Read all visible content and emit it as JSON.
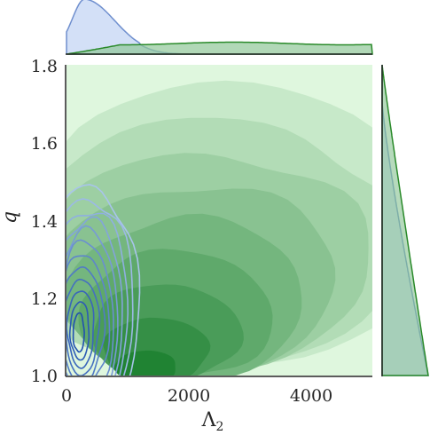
{
  "chart_data": {
    "type": "jointplot-kde-contour",
    "xlabel": "Λ",
    "xlabel_subscript": "2",
    "ylabel": "q",
    "xlim": [
      0,
      5000
    ],
    "ylim": [
      1.0,
      1.8
    ],
    "x_ticks": [
      0,
      2000,
      4000
    ],
    "x_tick_labels": [
      "0",
      "2000",
      "4000"
    ],
    "y_ticks": [
      1.0,
      1.2,
      1.4,
      1.6,
      1.8
    ],
    "y_tick_labels": [
      "1.0",
      "1.2",
      "1.4",
      "1.6",
      "1.8"
    ],
    "grid": false,
    "legend": "none",
    "colors": {
      "green_background": "#dff7de",
      "green_dark": "#1a7f2e",
      "green_line": "#2a8a2a",
      "blue_dark": "#2050b0",
      "blue_light": "#a8c4ec",
      "blue_fill": "#c8d8f5",
      "axis": "#262626"
    },
    "series": [
      {
        "style": "filled contours",
        "color": "green",
        "kde_density_mode": {
          "x": 1300,
          "y": 1.02
        },
        "extent_x": [
          0,
          5000
        ],
        "extent_y": [
          1.0,
          1.8
        ],
        "marginal_x": {
          "shape": "nearly flat, small rise near x = 0",
          "peak_x": 1500
        },
        "marginal_y": {
          "shape": "monotonically decreasing from q = 1.0",
          "peak_y": 1.0
        }
      },
      {
        "style": "line contours",
        "color": "blue",
        "kde_density_mode": {
          "x": 200,
          "y": 1.1
        },
        "extent_x": [
          0,
          1100
        ],
        "extent_y": [
          1.0,
          1.43
        ],
        "marginal_x": {
          "shape": "sharp peak near x = 300",
          "peak_x": 300
        },
        "marginal_y": {
          "shape": "decreasing from q = 1.0",
          "peak_y": 1.0
        }
      }
    ]
  }
}
